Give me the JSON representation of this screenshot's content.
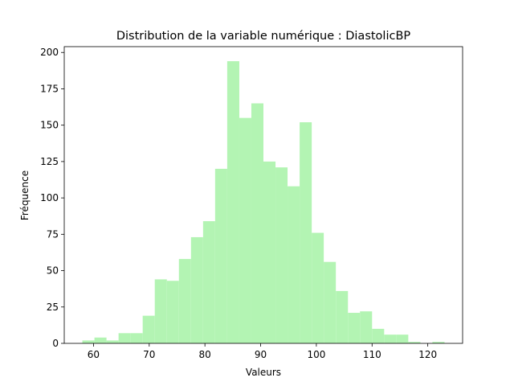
{
  "chart_data": {
    "type": "bar",
    "title": "Distribution de la variable numérique : DiastolicBP",
    "xlabel": "Valeurs",
    "ylabel": "Fréquence",
    "xlim": [
      54.75,
      126.25
    ],
    "ylim": [
      0,
      204
    ],
    "xticks": [
      60,
      70,
      80,
      90,
      100,
      110,
      120
    ],
    "yticks": [
      0,
      25,
      50,
      75,
      100,
      125,
      150,
      175,
      200
    ],
    "grid": false,
    "bar_color": "#b3f4b3",
    "bins": [
      {
        "x0": 58.0,
        "x1": 60.17,
        "value": 2
      },
      {
        "x0": 60.17,
        "x1": 62.33,
        "value": 4
      },
      {
        "x0": 62.33,
        "x1": 64.5,
        "value": 2
      },
      {
        "x0": 64.5,
        "x1": 66.67,
        "value": 7
      },
      {
        "x0": 66.67,
        "x1": 68.83,
        "value": 7
      },
      {
        "x0": 68.83,
        "x1": 71.0,
        "value": 19
      },
      {
        "x0": 71.0,
        "x1": 73.17,
        "value": 44
      },
      {
        "x0": 73.17,
        "x1": 75.33,
        "value": 43
      },
      {
        "x0": 75.33,
        "x1": 77.5,
        "value": 58
      },
      {
        "x0": 77.5,
        "x1": 79.67,
        "value": 73
      },
      {
        "x0": 79.67,
        "x1": 81.83,
        "value": 84
      },
      {
        "x0": 81.83,
        "x1": 84.0,
        "value": 120
      },
      {
        "x0": 84.0,
        "x1": 86.17,
        "value": 194
      },
      {
        "x0": 86.17,
        "x1": 88.33,
        "value": 155
      },
      {
        "x0": 88.33,
        "x1": 90.5,
        "value": 165
      },
      {
        "x0": 90.5,
        "x1": 92.67,
        "value": 125
      },
      {
        "x0": 92.67,
        "x1": 94.83,
        "value": 121
      },
      {
        "x0": 94.83,
        "x1": 97.0,
        "value": 108
      },
      {
        "x0": 97.0,
        "x1": 99.17,
        "value": 152
      },
      {
        "x0": 99.17,
        "x1": 101.33,
        "value": 76
      },
      {
        "x0": 101.33,
        "x1": 103.5,
        "value": 56
      },
      {
        "x0": 103.5,
        "x1": 105.67,
        "value": 36
      },
      {
        "x0": 105.67,
        "x1": 107.83,
        "value": 21
      },
      {
        "x0": 107.83,
        "x1": 110.0,
        "value": 22
      },
      {
        "x0": 110.0,
        "x1": 112.17,
        "value": 10
      },
      {
        "x0": 112.17,
        "x1": 114.33,
        "value": 6
      },
      {
        "x0": 114.33,
        "x1": 116.5,
        "value": 6
      },
      {
        "x0": 116.5,
        "x1": 118.67,
        "value": 1
      },
      {
        "x0": 118.67,
        "x1": 120.83,
        "value": 0
      },
      {
        "x0": 120.83,
        "x1": 123.0,
        "value": 1
      }
    ]
  }
}
